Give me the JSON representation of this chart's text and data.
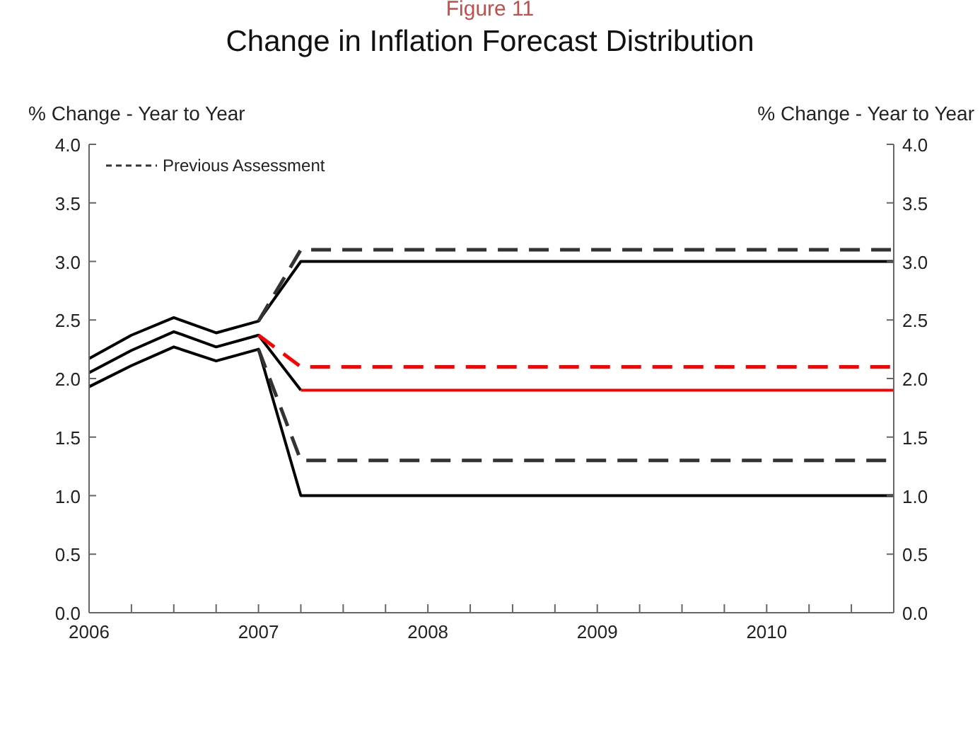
{
  "chart_data": {
    "type": "line",
    "title": "Change in Inflation Forecast Distribution",
    "annotations": [
      "Figure 11"
    ],
    "ylabel": "% Change - Year to Year",
    "y2label": "% Change - Year to Year",
    "xlim": [
      2006,
      2010.75
    ],
    "xticks": [
      2006,
      {
        "value": 2006.25,
        "label": null
      },
      {
        "value": 2006.5,
        "label": null
      },
      {
        "value": 2006.75,
        "label": null
      },
      2007,
      {
        "value": 2007.25,
        "label": null
      },
      {
        "value": 2007.5,
        "label": null
      },
      {
        "value": 2007.75,
        "label": null
      },
      2008,
      {
        "value": 2008.25,
        "label": null
      },
      {
        "value": 2008.5,
        "label": null
      },
      {
        "value": 2008.75,
        "label": null
      },
      2009,
      {
        "value": 2009.25,
        "label": null
      },
      {
        "value": 2009.5,
        "label": null
      },
      {
        "value": 2009.75,
        "label": null
      },
      2010,
      {
        "value": 2010.25,
        "label": null
      },
      {
        "value": 2010.5,
        "label": null
      },
      {
        "value": 2010.75,
        "label": null
      }
    ],
    "ylim": [
      0,
      4
    ],
    "yticks": [
      {
        "value": 0,
        "label": "0.0"
      },
      0.5,
      {
        "value": 1,
        "label": "1.0"
      },
      1.5,
      {
        "value": 2,
        "label": "2.0"
      },
      2.5,
      {
        "value": 3,
        "label": "3.0"
      },
      3.5,
      {
        "value": 4,
        "label": "4.0"
      }
    ],
    "y2lim": [
      0,
      4
    ],
    "y2ticks": [
      {
        "value": 0,
        "label": "0.0"
      },
      0.5,
      {
        "value": 1,
        "label": "1.0"
      },
      1.5,
      {
        "value": 2,
        "label": "2.0"
      },
      2.5,
      {
        "value": 3,
        "label": "3.0"
      },
      3.5,
      {
        "value": 4,
        "label": "4.0"
      }
    ],
    "legend": "top left",
    "marker": "none",
    "series": [
      {
        "color": "#000000",
        "line_style": "solid",
        "x": [
          2006,
          2006.25,
          2006.5,
          2006.75,
          2007,
          2007.25,
          2010.75
        ],
        "values": [
          2.17,
          2.37,
          2.52,
          2.39,
          2.49,
          3.0,
          3.0
        ]
      },
      {
        "color": "#000000",
        "line_style": "solid",
        "x": [
          2006,
          2006.25,
          2006.5,
          2006.75,
          2007,
          2007.25
        ],
        "values": [
          2.05,
          2.24,
          2.4,
          2.27,
          2.37,
          1.9
        ]
      },
      {
        "color": "#ff0000",
        "line_style": "solid",
        "x": [
          2007.25,
          2010.75
        ],
        "values": [
          1.9,
          1.9
        ]
      },
      {
        "color": "#000000",
        "line_style": "solid",
        "x": [
          2006,
          2006.25,
          2006.5,
          2006.75,
          2007,
          2007.25,
          2010.75
        ],
        "values": [
          1.93,
          2.11,
          2.27,
          2.15,
          2.25,
          1.0,
          1.0
        ]
      },
      {
        "name": "Previous Assessment",
        "color": "#333333",
        "line_style": "dashed",
        "x": [
          2007,
          2007.25,
          2010.75
        ],
        "values": [
          2.49,
          3.1,
          3.1
        ]
      },
      {
        "color": "#ff0000",
        "line_style": "dashed",
        "x": [
          2007,
          2007.25,
          2010.75
        ],
        "values": [
          2.37,
          2.1,
          2.1
        ]
      },
      {
        "color": "#333333",
        "line_style": "dashed",
        "x": [
          2007,
          2007.25,
          2010.75
        ],
        "values": [
          2.25,
          1.3,
          1.3
        ]
      }
    ]
  }
}
